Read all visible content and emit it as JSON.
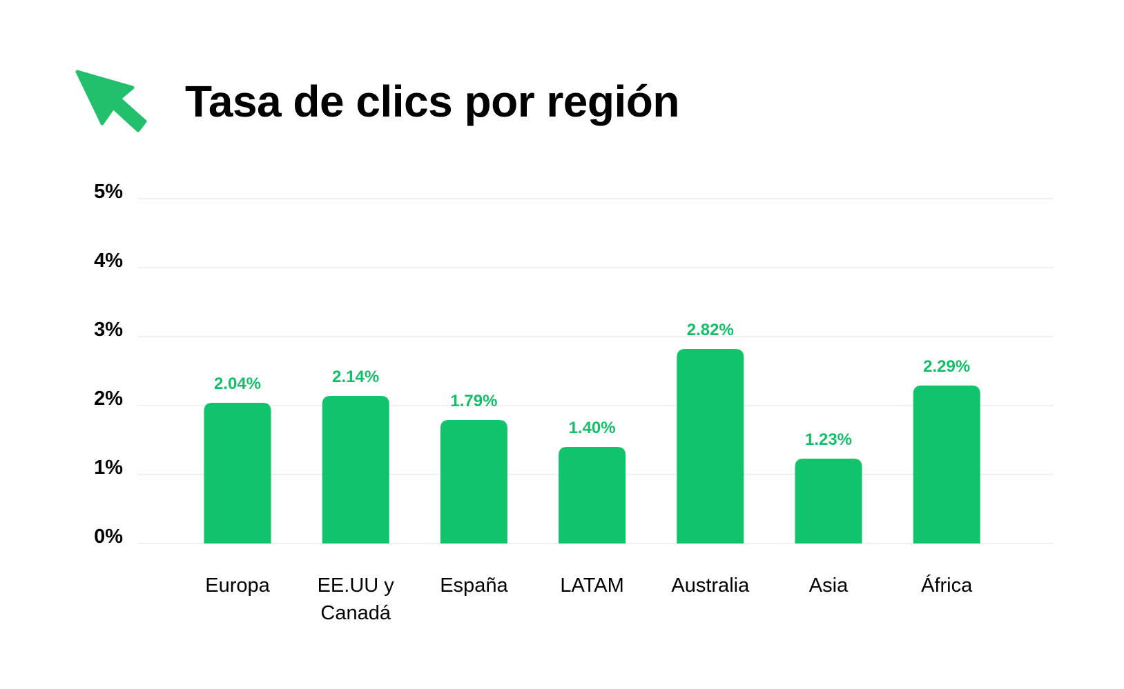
{
  "title": "Tasa de clics por región",
  "icon": "cursor-arrow-icon",
  "colors": {
    "bar": "#0fc46b",
    "label": "#12c06a",
    "icon": "#22c06c",
    "grid": "#eef0f4",
    "text": "#000000"
  },
  "chart_data": {
    "type": "bar",
    "title": "Tasa de clics por región",
    "categories": [
      [
        "Europa"
      ],
      [
        "EE.UU y",
        "Canadá"
      ],
      [
        "España"
      ],
      [
        "LATAM"
      ],
      [
        "Australia"
      ],
      [
        "Asia"
      ],
      [
        "África"
      ]
    ],
    "values": [
      2.04,
      2.14,
      1.79,
      1.4,
      2.82,
      1.23,
      2.29
    ],
    "value_labels": [
      "2.04%",
      "2.14%",
      "1.79%",
      "1.40%",
      "2.82%",
      "1.23%",
      "2.29%"
    ],
    "yticks": [
      0,
      1,
      2,
      3,
      4,
      5
    ],
    "ytick_labels": [
      "0%",
      "1%",
      "2%",
      "3%",
      "4%",
      "5%"
    ],
    "ylim": [
      0,
      5
    ],
    "xlabel": "",
    "ylabel": "",
    "grid": true,
    "legend": "none"
  }
}
